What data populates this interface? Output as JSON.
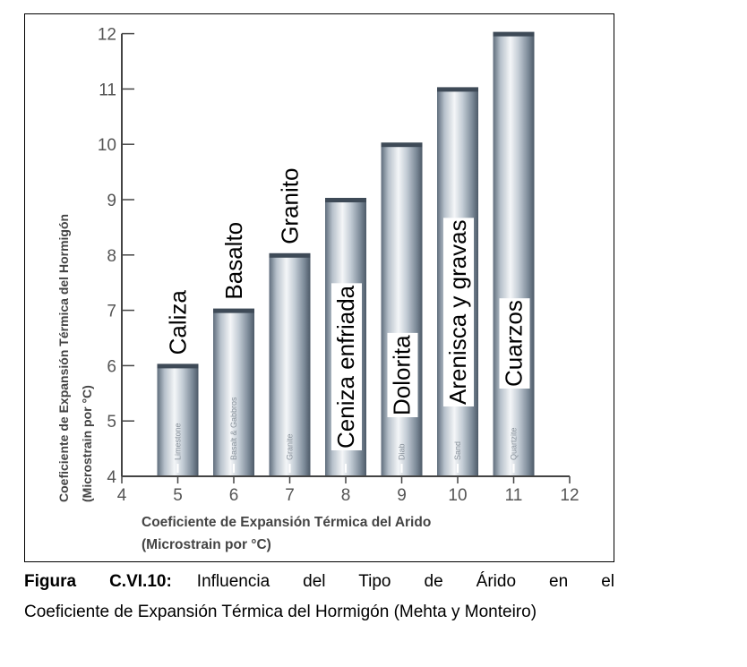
{
  "chart_data": {
    "type": "bar",
    "xlabel_line1": "Coeficiente de Expansión Térmica del Arido",
    "xlabel_line2": "(Microstrain por °C)",
    "ylabel_line1": "Coeficiente de Expansión Térmica del Hormigón",
    "ylabel_line2": "(Microstrain por °C)",
    "xlim": [
      4,
      12
    ],
    "ylim": [
      4,
      12
    ],
    "x_ticks": [
      4,
      5,
      6,
      7,
      8,
      9,
      10,
      11,
      12
    ],
    "y_ticks": [
      4,
      5,
      6,
      7,
      8,
      9,
      10,
      11,
      12
    ],
    "bars": [
      {
        "x": 5,
        "value": 6.0,
        "label": "Caliza",
        "inner_label": "Limestone"
      },
      {
        "x": 6,
        "value": 7.0,
        "label": "Basalto",
        "inner_label": "Basalt & Gabbros"
      },
      {
        "x": 7,
        "value": 8.0,
        "label": "Granito",
        "inner_label": "Granite"
      },
      {
        "x": 8,
        "value": 9.0,
        "label": "Ceniza enfriada",
        "inner_label": ""
      },
      {
        "x": 9,
        "value": 10.0,
        "label": "Dolorita",
        "inner_label": "Diab"
      },
      {
        "x": 10,
        "value": 11.0,
        "label": "Arenisca y gravas",
        "inner_label": "Sand"
      },
      {
        "x": 11,
        "value": 12.0,
        "label": "Cuarzos",
        "inner_label": "Quartzite"
      }
    ],
    "grid": false,
    "legend": "none"
  },
  "caption": {
    "figure_label": "Figura C.VI.10:",
    "line1_text": "Influencia del Tipo de Árido en el",
    "rest_text": "Coeficiente de Expansión Térmica del Hormigón (Mehta y Monteiro)"
  }
}
